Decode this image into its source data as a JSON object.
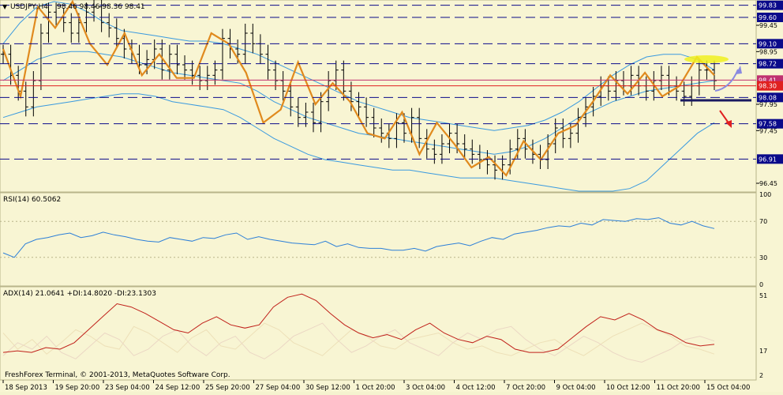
{
  "chart_data": {
    "type": "line",
    "platform_note": "FreshForex Terminal, © 2001-2013, MetaQuotes Software Corp.",
    "main": {
      "title": "USDJPY,H4",
      "ohlc": "98.46 98.46 98.36 98.41",
      "ylim": [
        96.3,
        99.9
      ],
      "yticks": [
        99.45,
        98.95,
        97.95,
        97.45,
        96.45
      ],
      "levels": [
        {
          "value": 99.83,
          "color": "#0a0a8a",
          "style": "dash",
          "label_color": "#0a0a8a"
        },
        {
          "value": 99.6,
          "color": "#0a0a8a",
          "style": "dash",
          "label_color": "#0a0a8a"
        },
        {
          "value": 99.1,
          "color": "#0a0a8a",
          "style": "dash",
          "label_color": "#0a0a8a"
        },
        {
          "value": 98.72,
          "color": "#0a0a8a",
          "style": "dash",
          "label_color": "#0a0a8a"
        },
        {
          "value": 98.41,
          "color": "#c03070",
          "style": "solid",
          "label_color": "#c03070"
        },
        {
          "value": 98.3,
          "color": "#e02020",
          "style": "solid",
          "label_color": "#e02020"
        },
        {
          "value": 98.08,
          "color": "#0a0a8a",
          "style": "dash",
          "label_color": "#0a0a8a"
        },
        {
          "value": 97.58,
          "color": "#0a0a8a",
          "style": "dash",
          "label_color": "#0a0a8a"
        },
        {
          "value": 96.91,
          "color": "#0a0a8a",
          "style": "dash",
          "label_color": "#0a0a8a"
        }
      ],
      "zigzag": [
        99.0,
        98.1,
        99.8,
        99.4,
        99.9,
        99.1,
        98.7,
        99.3,
        98.5,
        98.9,
        98.45,
        98.45,
        99.3,
        99.1,
        98.55,
        97.6,
        97.85,
        98.75,
        97.95,
        98.35,
        98.0,
        97.4,
        97.3,
        97.8,
        97.0,
        97.6,
        97.2,
        96.75,
        96.95,
        96.6,
        97.25,
        96.9,
        97.4,
        97.55,
        98.0,
        98.5,
        98.15,
        98.55,
        98.1,
        98.3,
        98.85,
        98.5
      ],
      "closes": [
        98.9,
        98.5,
        98.2,
        97.9,
        98.4,
        99.3,
        99.7,
        99.6,
        99.5,
        99.3,
        99.5,
        99.7,
        99.8,
        99.5,
        99.4,
        99.2,
        99.0,
        98.9,
        98.7,
        98.8,
        99.0,
        98.6,
        98.9,
        98.7,
        98.6,
        98.5,
        98.4,
        98.5,
        98.6,
        99.2,
        99.0,
        98.9,
        99.3,
        99.1,
        98.9,
        98.6,
        98.4,
        98.2,
        97.9,
        97.7,
        97.8,
        97.6,
        98.0,
        98.4,
        98.6,
        98.2,
        98.0,
        97.9,
        97.7,
        97.5,
        97.4,
        97.3,
        97.6,
        97.4,
        97.7,
        97.3,
        97.1,
        97.0,
        97.2,
        97.4,
        97.2,
        97.1,
        97.0,
        96.9,
        96.8,
        96.7,
        96.8,
        97.1,
        97.3,
        97.1,
        97.0,
        96.9,
        97.2,
        97.5,
        97.3,
        97.4,
        97.7,
        97.9,
        98.1,
        98.3,
        98.2,
        98.4,
        98.3,
        98.5,
        98.3,
        98.2,
        98.4,
        98.5,
        98.3,
        98.2,
        98.1,
        98.3,
        98.6,
        98.6,
        98.4
      ],
      "bb_upper": [
        99.1,
        99.5,
        99.8,
        99.9,
        99.85,
        99.7,
        99.5,
        99.35,
        99.3,
        99.25,
        99.2,
        99.15,
        99.15,
        99.1,
        99.0,
        98.9,
        98.75,
        98.6,
        98.45,
        98.3,
        98.15,
        98.0,
        97.9,
        97.8,
        97.7,
        97.65,
        97.6,
        97.55,
        97.5,
        97.45,
        97.5,
        97.55,
        97.65,
        97.8,
        98.0,
        98.25,
        98.5,
        98.7,
        98.85,
        98.9,
        98.9,
        98.8,
        98.6
      ],
      "bb_middle": [
        98.4,
        98.6,
        98.8,
        98.9,
        98.95,
        98.95,
        98.9,
        98.85,
        98.75,
        98.65,
        98.55,
        98.5,
        98.45,
        98.4,
        98.35,
        98.2,
        98.0,
        97.85,
        97.7,
        97.6,
        97.5,
        97.4,
        97.35,
        97.3,
        97.25,
        97.2,
        97.15,
        97.1,
        97.05,
        97.0,
        97.05,
        97.15,
        97.3,
        97.5,
        97.7,
        97.85,
        98.0,
        98.1,
        98.2,
        98.25,
        98.3,
        98.35,
        98.4
      ],
      "bb_lower": [
        97.7,
        97.8,
        97.9,
        97.95,
        98.0,
        98.05,
        98.1,
        98.15,
        98.15,
        98.1,
        98.0,
        97.95,
        97.9,
        97.85,
        97.7,
        97.5,
        97.3,
        97.15,
        97.0,
        96.9,
        96.85,
        96.8,
        96.75,
        96.7,
        96.7,
        96.65,
        96.6,
        96.55,
        96.55,
        96.55,
        96.5,
        96.45,
        96.4,
        96.35,
        96.3,
        96.3,
        96.3,
        96.35,
        96.5,
        96.8,
        97.1,
        97.4,
        97.6
      ]
    },
    "rsi": {
      "label": "RSI(14) 60.5062",
      "ylim": [
        0,
        100
      ],
      "yticks": [
        100,
        70,
        30,
        0
      ],
      "values": [
        35,
        30,
        45,
        50,
        52,
        55,
        57,
        52,
        54,
        58,
        55,
        53,
        50,
        48,
        47,
        52,
        50,
        48,
        52,
        51,
        55,
        57,
        50,
        53,
        50,
        48,
        46,
        45,
        44,
        48,
        42,
        45,
        41,
        40,
        40,
        38,
        38,
        40,
        37,
        42,
        44,
        46,
        43,
        48,
        52,
        50,
        56,
        58,
        60,
        63,
        65,
        64,
        68,
        66,
        72,
        71,
        70,
        73,
        72,
        74,
        68,
        66,
        70,
        65,
        62
      ]
    },
    "adx": {
      "label": "ADX(14) 21.0641 +DI:14.8020 -DI:23.1303",
      "ylim": [
        0,
        55
      ],
      "yticks": [
        51,
        17,
        2
      ],
      "adx": [
        16,
        17,
        16,
        19,
        18,
        22,
        30,
        38,
        46,
        44,
        40,
        35,
        30,
        28,
        34,
        38,
        33,
        31,
        33,
        44,
        50,
        52,
        48,
        40,
        33,
        28,
        25,
        27,
        24,
        30,
        34,
        28,
        24,
        22,
        26,
        24,
        18,
        16,
        16,
        18,
        25,
        32,
        38,
        36,
        40,
        36,
        30,
        27,
        22,
        20,
        21
      ],
      "plus_di": [
        28,
        18,
        24,
        15,
        22,
        30,
        26,
        20,
        18,
        32,
        28,
        22,
        16,
        25,
        30,
        20,
        18,
        26,
        34,
        30,
        22,
        18,
        14,
        22,
        30,
        26,
        20,
        18,
        24,
        26,
        28,
        22,
        18,
        20,
        16,
        14,
        18,
        22,
        24,
        18,
        14,
        20,
        26,
        30,
        34,
        30,
        26,
        20,
        18,
        15
      ],
      "minus_di": [
        14,
        22,
        18,
        26,
        16,
        12,
        20,
        28,
        24,
        14,
        18,
        26,
        30,
        20,
        14,
        22,
        26,
        16,
        12,
        18,
        26,
        30,
        34,
        24,
        16,
        20,
        26,
        30,
        22,
        18,
        14,
        22,
        28,
        24,
        30,
        32,
        24,
        18,
        14,
        20,
        26,
        22,
        16,
        12,
        10,
        14,
        18,
        24,
        26,
        23
      ]
    },
    "x_ticks": [
      "18 Sep 2013",
      "19 Sep 20:00",
      "23 Sep 04:00",
      "24 Sep 12:00",
      "25 Sep 20:00",
      "27 Sep 04:00",
      "30 Sep 12:00",
      "1 Oct 20:00",
      "3 Oct 04:00",
      "4 Oct 12:00",
      "7 Oct 20:00",
      "9 Oct 04:00",
      "10 Oct 12:00",
      "11 Oct 20:00",
      "15 Oct 04:00"
    ]
  }
}
